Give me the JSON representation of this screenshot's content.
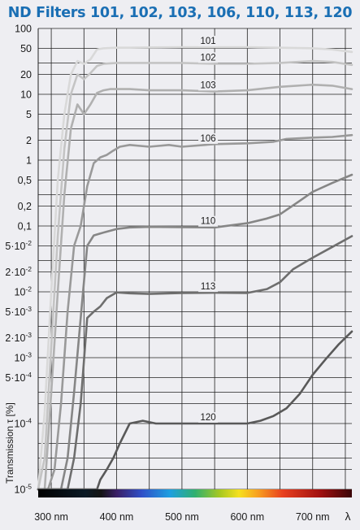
{
  "chart_data": {
    "type": "line",
    "title": "ND Filters 101, 102, 103, 106, 110, 113, 120",
    "ylabel": "Transmission τ [%]",
    "y_scale": "log",
    "ylim": [
      1e-05,
      100
    ],
    "xlim": [
      280,
      760
    ],
    "x_ticks": [
      {
        "value": 300,
        "label": "300 nm"
      },
      {
        "value": 400,
        "label": "400 nm"
      },
      {
        "value": 500,
        "label": "500 nm"
      },
      {
        "value": 600,
        "label": "600 nm"
      },
      {
        "value": 700,
        "label": "700 nm"
      }
    ],
    "x_axis_symbol": "λ",
    "y_ticks": [
      {
        "value": 100,
        "label": "100"
      },
      {
        "value": 50,
        "label": "50"
      },
      {
        "value": 20,
        "label": "20"
      },
      {
        "value": 10,
        "label": "10"
      },
      {
        "value": 5,
        "label": "5"
      },
      {
        "value": 2,
        "label": "2"
      },
      {
        "value": 1,
        "label": "1"
      },
      {
        "value": 0.5,
        "label": "0,5"
      },
      {
        "value": 0.2,
        "label": "0,2"
      },
      {
        "value": 0.1,
        "label": "0,1"
      },
      {
        "value": 0.05,
        "label": "5·10",
        "exp": "-2"
      },
      {
        "value": 0.02,
        "label": "2·10",
        "exp": "-2"
      },
      {
        "value": 0.01,
        "label": "10",
        "exp": "-2"
      },
      {
        "value": 0.005,
        "label": "5·10",
        "exp": "-3"
      },
      {
        "value": 0.002,
        "label": "2·10",
        "exp": "-3"
      },
      {
        "value": 0.001,
        "label": "10",
        "exp": "-3"
      },
      {
        "value": 0.0005,
        "label": "5·10",
        "exp": "-4"
      },
      {
        "value": 0.0001,
        "label": "10",
        "exp": "-4"
      },
      {
        "value": 1e-05,
        "label": "10",
        "exp": "-5"
      }
    ],
    "series": [
      {
        "name": "101",
        "color": "#d9d9d9",
        "label_x": 540,
        "x": [
          280,
          290,
          300,
          310,
          320,
          330,
          340,
          350,
          360,
          370,
          380,
          390,
          400,
          420,
          450,
          500,
          550,
          600,
          650,
          700,
          730,
          760
        ],
        "y": [
          1e-05,
          0.00015,
          0.01,
          0.5,
          5,
          20,
          32,
          29,
          34,
          48,
          50,
          50.5,
          51,
          51,
          51.5,
          52,
          52,
          52,
          51,
          50,
          48,
          44
        ]
      },
      {
        "name": "102",
        "color": "#c4c4c4",
        "label_x": 540,
        "x": [
          280,
          290,
          300,
          310,
          320,
          330,
          340,
          350,
          360,
          370,
          380,
          390,
          400,
          420,
          450,
          500,
          550,
          600,
          650,
          700,
          730,
          760
        ],
        "y": [
          1e-05,
          3e-05,
          0.0015,
          0.07,
          1.5,
          10,
          20,
          17,
          21,
          27,
          29,
          29.5,
          30,
          30,
          30,
          30,
          29,
          29,
          30,
          32,
          31,
          28
        ]
      },
      {
        "name": "103",
        "color": "#b0b0b0",
        "label_x": 540,
        "x": [
          280,
          290,
          300,
          310,
          320,
          330,
          340,
          350,
          360,
          370,
          380,
          390,
          400,
          420,
          450,
          500,
          550,
          600,
          650,
          700,
          730,
          760
        ],
        "y": [
          1e-05,
          1e-05,
          0.0003,
          0.01,
          0.3,
          3,
          7,
          5,
          7,
          10.5,
          11.5,
          12,
          12,
          12,
          11.5,
          11.5,
          11,
          11.5,
          13,
          14,
          13.5,
          12
        ]
      },
      {
        "name": "106",
        "color": "#999999",
        "label_x": 540,
        "x": [
          280,
          295,
          305,
          315,
          325,
          335,
          345,
          355,
          365,
          375,
          385,
          395,
          405,
          420,
          450,
          480,
          500,
          550,
          600,
          640,
          660,
          700,
          730,
          760
        ],
        "y": [
          1e-05,
          1e-05,
          2e-05,
          0.0002,
          0.005,
          0.05,
          0.1,
          0.4,
          0.9,
          1.1,
          1.2,
          1.4,
          1.6,
          1.7,
          1.6,
          1.7,
          1.6,
          1.75,
          1.8,
          1.9,
          2.1,
          2.2,
          2.25,
          2.4
        ]
      },
      {
        "name": "110",
        "color": "#868686",
        "label_x": 540,
        "x": [
          280,
          315,
          325,
          335,
          345,
          355,
          365,
          375,
          385,
          400,
          420,
          450,
          500,
          550,
          600,
          630,
          650,
          680,
          700,
          730,
          760
        ],
        "y": [
          1e-05,
          1e-05,
          3e-05,
          0.0003,
          0.004,
          0.05,
          0.072,
          0.077,
          0.082,
          0.09,
          0.095,
          0.097,
          0.096,
          0.095,
          0.11,
          0.13,
          0.15,
          0.24,
          0.33,
          0.45,
          0.6
        ]
      },
      {
        "name": "113",
        "color": "#6e6e6e",
        "label_x": 540,
        "x": [
          280,
          325,
          335,
          345,
          355,
          365,
          375,
          385,
          400,
          420,
          450,
          500,
          550,
          600,
          630,
          650,
          670,
          700,
          730,
          760
        ],
        "y": [
          1e-05,
          1e-05,
          3e-05,
          0.0002,
          0.004,
          0.005,
          0.006,
          0.008,
          0.0098,
          0.0095,
          0.0093,
          0.0096,
          0.0097,
          0.0096,
          0.011,
          0.014,
          0.022,
          0.033,
          0.048,
          0.07
        ]
      },
      {
        "name": "120",
        "color": "#595959",
        "label_x": 540,
        "x": [
          280,
          370,
          375,
          385,
          395,
          405,
          420,
          440,
          460,
          500,
          550,
          600,
          620,
          640,
          660,
          680,
          700,
          720,
          740,
          760
        ],
        "y": [
          1e-05,
          1e-05,
          1.4e-05,
          2e-05,
          3e-05,
          5e-05,
          0.0001,
          0.00011,
          0.0001,
          0.0001,
          0.0001,
          0.0001,
          0.00011,
          0.00013,
          0.00017,
          0.00028,
          0.00055,
          0.00095,
          0.0016,
          0.0025
        ]
      }
    ],
    "grid": true,
    "colors": {
      "title": "#1a6fb4",
      "grid": "#222222",
      "axis": "#1a1a1a"
    }
  }
}
